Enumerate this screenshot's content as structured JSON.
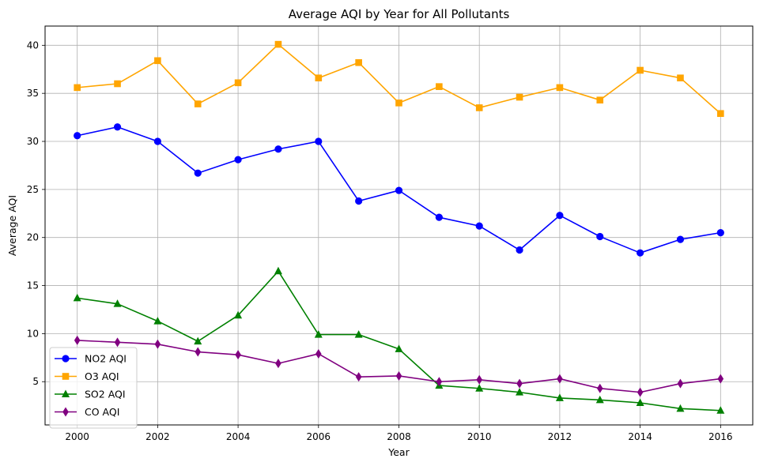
{
  "chart_data": {
    "type": "line",
    "title": "Average AQI by Year for All Pollutants",
    "xlabel": "Year",
    "ylabel": "Average AQI",
    "xlim": [
      1999.2,
      2016.8
    ],
    "ylim": [
      0.5,
      42.0
    ],
    "x_ticks": [
      2000,
      2002,
      2004,
      2006,
      2008,
      2010,
      2012,
      2014,
      2016
    ],
    "y_ticks": [
      5,
      10,
      15,
      20,
      25,
      30,
      35,
      40
    ],
    "grid": true,
    "legend_position": "lower-left",
    "x": [
      2000,
      2001,
      2002,
      2003,
      2004,
      2005,
      2006,
      2007,
      2008,
      2009,
      2010,
      2011,
      2012,
      2013,
      2014,
      2015,
      2016
    ],
    "series": [
      {
        "name": "NO2 AQI",
        "color": "#0000ff",
        "marker": "circle",
        "values": [
          30.6,
          31.5,
          30.0,
          26.7,
          28.1,
          29.2,
          30.0,
          23.8,
          24.9,
          22.1,
          21.2,
          18.7,
          22.3,
          20.1,
          18.4,
          19.8,
          20.5
        ]
      },
      {
        "name": "O3 AQI",
        "color": "#ffa500",
        "marker": "square",
        "values": [
          35.6,
          36.0,
          38.4,
          33.9,
          36.1,
          40.1,
          36.6,
          38.2,
          34.0,
          35.7,
          33.5,
          34.6,
          35.6,
          34.3,
          37.4,
          36.6,
          32.9
        ]
      },
      {
        "name": "SO2 AQI",
        "color": "#008000",
        "marker": "triangle",
        "values": [
          13.7,
          13.1,
          11.3,
          9.2,
          11.9,
          16.5,
          9.9,
          9.9,
          8.4,
          4.6,
          4.3,
          3.9,
          3.3,
          3.1,
          2.8,
          2.2,
          2.0
        ]
      },
      {
        "name": "CO AQI",
        "color": "#800080",
        "marker": "diamond",
        "values": [
          9.3,
          9.1,
          8.9,
          8.1,
          7.8,
          6.9,
          7.9,
          5.5,
          5.6,
          5.0,
          5.2,
          4.8,
          5.3,
          4.3,
          3.9,
          4.8,
          5.3
        ]
      }
    ]
  }
}
